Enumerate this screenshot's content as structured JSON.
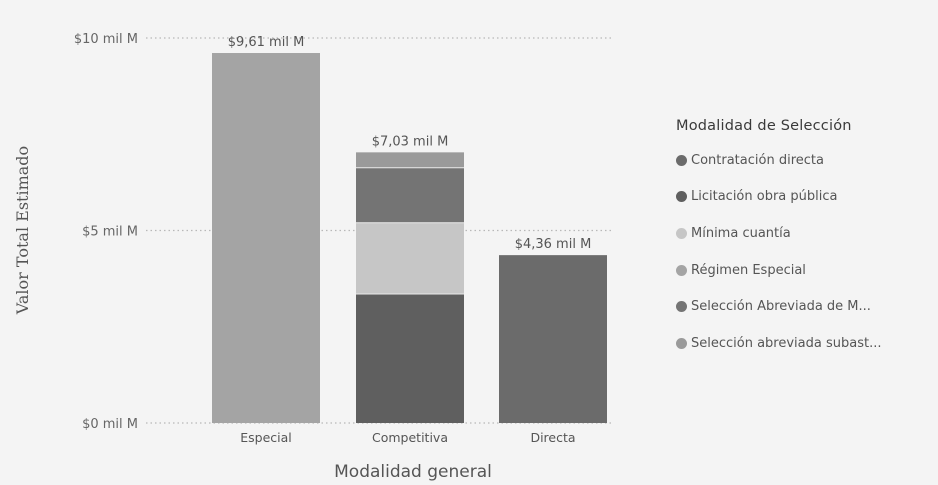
{
  "chart_data": {
    "type": "bar",
    "stacked": true,
    "xlabel": "Modalidad general",
    "ylabel": "Valor Total Estimado",
    "ylim": [
      0,
      10
    ],
    "y_ticks": [
      "$0 mil M",
      "$5 mil M",
      "$10 mil M"
    ],
    "categories": [
      "Especial",
      "Competitiva",
      "Directa"
    ],
    "totals_labels": [
      "$9,61 mil M",
      "$7,03 mil M",
      "$4,36 mil M"
    ],
    "series": [
      {
        "name": "Contratación directa",
        "color": "#6b6b6b",
        "values": [
          0,
          0,
          4.36
        ]
      },
      {
        "name": "Licitación obra pública",
        "color": "#5f5f5f",
        "values": [
          0,
          3.35,
          0
        ]
      },
      {
        "name": "Mínima cuantía",
        "color": "#c6c6c6",
        "values": [
          0,
          1.85,
          0
        ]
      },
      {
        "name": "Régimen Especial",
        "color": "#a4a4a4",
        "values": [
          9.61,
          0,
          0
        ]
      },
      {
        "name": "Selección Abreviada de M...",
        "color": "#747474",
        "values": [
          0,
          1.43,
          0
        ]
      },
      {
        "name": "Selección abreviada subast...",
        "color": "#9a9a9a",
        "values": [
          0,
          0.4,
          0
        ]
      }
    ],
    "legend_title": "Modalidad de Selección",
    "legend_position": "right",
    "grid": "horizontal dotted"
  }
}
